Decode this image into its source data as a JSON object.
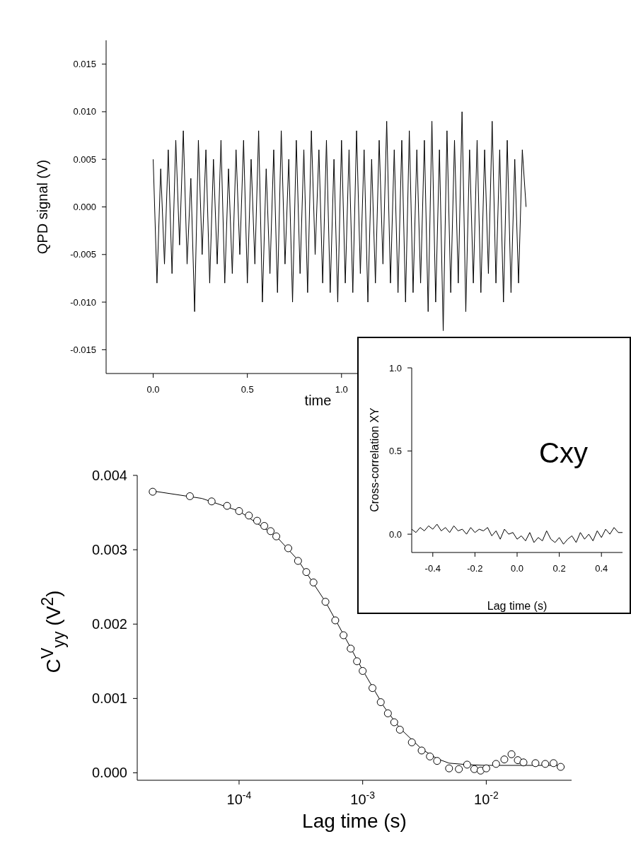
{
  "chart_data": [
    {
      "type": "line",
      "xlabel": "time",
      "ylabel": "QPD signal (V)",
      "color": "#000000",
      "xlim": [
        -0.25,
        2.0
      ],
      "xticks": [
        {
          "value": 0,
          "label": "0.0"
        },
        {
          "value": 0.5,
          "label": "0.5"
        },
        {
          "value": 1,
          "label": "1.0"
        }
      ],
      "ylim": [
        -0.0175,
        0.0175
      ],
      "yticks": [
        {
          "value": -0.015,
          "label": "-0.015"
        },
        {
          "value": -0.01,
          "label": "-0.010"
        },
        {
          "value": -0.005,
          "label": "-0.005"
        },
        {
          "value": 0,
          "label": "0.000"
        },
        {
          "value": 0.005,
          "label": "0.005"
        },
        {
          "value": 0.01,
          "label": "0.010"
        },
        {
          "value": 0.015,
          "label": "0.015"
        }
      ],
      "x": [
        0,
        0.02,
        0.04,
        0.06,
        0.08,
        0.1,
        0.12,
        0.14,
        0.16,
        0.18,
        0.2,
        0.22,
        0.24,
        0.26,
        0.28,
        0.3,
        0.32,
        0.34,
        0.36,
        0.38,
        0.4,
        0.42,
        0.44,
        0.46,
        0.48,
        0.5,
        0.52,
        0.54,
        0.56,
        0.58,
        0.6,
        0.62,
        0.64,
        0.66,
        0.68,
        0.7,
        0.72,
        0.74,
        0.76,
        0.78,
        0.8,
        0.82,
        0.84,
        0.86,
        0.88,
        0.9,
        0.92,
        0.94,
        0.96,
        0.98,
        1.0,
        1.02,
        1.04,
        1.06,
        1.08,
        1.1,
        1.12,
        1.14,
        1.16,
        1.18,
        1.2,
        1.22,
        1.24,
        1.26,
        1.28,
        1.3,
        1.32,
        1.34,
        1.36,
        1.38,
        1.4,
        1.42,
        1.44,
        1.46,
        1.48,
        1.5,
        1.52,
        1.54,
        1.56,
        1.58,
        1.6,
        1.62,
        1.64,
        1.66,
        1.68,
        1.7,
        1.72,
        1.74,
        1.76,
        1.78,
        1.8,
        1.82,
        1.84,
        1.86,
        1.88,
        1.9,
        1.92,
        1.94,
        1.96,
        1.98
      ],
      "values": [
        0.005,
        -0.008,
        0.004,
        -0.006,
        0.006,
        -0.007,
        0.007,
        -0.004,
        0.008,
        -0.006,
        0.003,
        -0.011,
        0.007,
        -0.005,
        0.006,
        -0.008,
        0.005,
        -0.006,
        0.007,
        -0.008,
        0.004,
        -0.007,
        0.006,
        -0.005,
        0.007,
        -0.008,
        0.005,
        -0.006,
        0.008,
        -0.01,
        0.004,
        -0.007,
        0.006,
        -0.009,
        0.008,
        -0.006,
        0.005,
        -0.01,
        0.007,
        -0.007,
        0.006,
        -0.009,
        0.008,
        -0.005,
        0.006,
        -0.008,
        0.007,
        -0.009,
        0.005,
        -0.01,
        0.007,
        -0.008,
        0.006,
        -0.009,
        0.008,
        -0.007,
        0.006,
        -0.01,
        0.005,
        -0.008,
        0.007,
        -0.006,
        0.009,
        -0.008,
        0.006,
        -0.009,
        0.007,
        -0.01,
        0.008,
        -0.009,
        0.006,
        -0.008,
        0.007,
        -0.011,
        0.009,
        -0.01,
        0.006,
        -0.013,
        0.008,
        -0.009,
        0.007,
        -0.008,
        0.01,
        -0.011,
        0.006,
        -0.008,
        0.007,
        -0.009,
        0.006,
        -0.007,
        0.009,
        -0.008,
        0.006,
        -0.01,
        0.007,
        -0.009,
        0.005,
        -0.008,
        0.006,
        0.0
      ]
    },
    {
      "type": "scatter",
      "xlabel": "Lag time (s)",
      "ylabel": "C$^{V}$$_{yy}$ (V$^{2}$)",
      "log": "x",
      "xlim": [
        1.5e-05,
        0.049
      ],
      "xticks": [
        {
          "value": 0.0001,
          "label": "10$^{-4}$"
        },
        {
          "value": 0.001,
          "label": "10$^{-3}$"
        },
        {
          "value": 0.01,
          "label": "10$^{-2}$"
        }
      ],
      "ylim": [
        -0.0001,
        0.004
      ],
      "yticks": [
        {
          "value": 0,
          "label": "0.000"
        },
        {
          "value": 0.001,
          "label": "0.001"
        },
        {
          "value": 0.002,
          "label": "0.002"
        },
        {
          "value": 0.003,
          "label": "0.003"
        },
        {
          "value": 0.004,
          "label": "0.004"
        }
      ],
      "series": [
        {
          "marker": "circle",
          "color": "#000000",
          "x": [
            2e-05,
            4e-05,
            6e-05,
            8e-05,
            0.0001,
            0.00012,
            0.00014,
            0.00016,
            0.00018,
            0.0002,
            0.00025,
            0.0003,
            0.00035,
            0.0004,
            0.0005,
            0.0006,
            0.0007,
            0.0008,
            0.0009,
            0.001,
            0.0012,
            0.0014,
            0.0016,
            0.0018,
            0.002,
            0.0025,
            0.003,
            0.0035,
            0.004,
            0.005,
            0.006,
            0.007,
            0.008,
            0.009,
            0.01,
            0.012,
            0.014,
            0.016,
            0.018,
            0.02,
            0.025,
            0.03,
            0.035,
            0.04
          ],
          "values": [
            0.00378,
            0.00372,
            0.00365,
            0.00359,
            0.00352,
            0.00346,
            0.00339,
            0.00332,
            0.00325,
            0.00318,
            0.00302,
            0.00285,
            0.0027,
            0.00256,
            0.0023,
            0.00205,
            0.00185,
            0.00167,
            0.0015,
            0.00137,
            0.00114,
            0.00095,
            0.0008,
            0.00068,
            0.00058,
            0.00041,
            0.0003,
            0.00022,
            0.00016,
            6e-05,
            5e-05,
            0.00011,
            5e-05,
            3e-05,
            6e-05,
            0.00012,
            0.00018,
            0.00025,
            0.00017,
            0.00014,
            0.00013,
            0.00012,
            0.00013,
            8e-05
          ]
        },
        {
          "type": "line",
          "color": "#000000",
          "x": [
            2e-05,
            5e-05,
            0.0001,
            0.0002,
            0.0003,
            0.0005,
            0.0007,
            0.001,
            0.0015,
            0.002,
            0.003,
            0.004,
            0.005,
            0.007,
            0.01,
            0.02,
            0.04
          ],
          "values": [
            0.00379,
            0.00369,
            0.00352,
            0.00318,
            0.00286,
            0.0023,
            0.00186,
            0.00138,
            0.00088,
            0.0006,
            0.00032,
            0.00019,
            0.00013,
            0.00011,
            0.0001,
            0.0001,
            0.0001
          ]
        }
      ]
    },
    {
      "type": "line",
      "xlabel": "Lag time (s)",
      "ylabel": "Cross-correlation XY",
      "annotations": [
        "Cxy"
      ],
      "color": "#000000",
      "xlim": [
        -0.5,
        0.5
      ],
      "xticks": [
        {
          "value": -0.4,
          "label": "-0.4"
        },
        {
          "value": -0.2,
          "label": "-0.2"
        },
        {
          "value": 0,
          "label": "0.0"
        },
        {
          "value": 0.2,
          "label": "0.2"
        },
        {
          "value": 0.4,
          "label": "0.4"
        }
      ],
      "ylim": [
        -0.11,
        1.0
      ],
      "yticks": [
        {
          "value": 0,
          "label": "0.0"
        },
        {
          "value": 0.5,
          "label": "0.5"
        },
        {
          "value": 1,
          "label": "1.0"
        }
      ],
      "x": [
        -0.5,
        -0.48,
        -0.46,
        -0.44,
        -0.42,
        -0.4,
        -0.38,
        -0.36,
        -0.34,
        -0.32,
        -0.3,
        -0.28,
        -0.26,
        -0.24,
        -0.22,
        -0.2,
        -0.18,
        -0.16,
        -0.14,
        -0.12,
        -0.1,
        -0.08,
        -0.06,
        -0.04,
        -0.02,
        0,
        0.02,
        0.04,
        0.06,
        0.08,
        0.1,
        0.12,
        0.14,
        0.16,
        0.18,
        0.2,
        0.22,
        0.24,
        0.26,
        0.28,
        0.3,
        0.32,
        0.34,
        0.36,
        0.38,
        0.4,
        0.42,
        0.44,
        0.46,
        0.48,
        0.5
      ],
      "values": [
        0.03,
        0.01,
        0.04,
        0.02,
        0.05,
        0.03,
        0.06,
        0.02,
        0.04,
        0.01,
        0.05,
        0.02,
        0.03,
        0.0,
        0.04,
        0.01,
        0.03,
        0.02,
        0.04,
        -0.01,
        0.02,
        -0.03,
        0.03,
        0.0,
        0.01,
        -0.03,
        -0.01,
        -0.04,
        0.01,
        -0.05,
        -0.02,
        -0.04,
        0.02,
        -0.03,
        -0.05,
        -0.02,
        -0.06,
        -0.03,
        -0.01,
        -0.05,
        0.01,
        -0.03,
        0.0,
        -0.04,
        0.02,
        -0.02,
        0.03,
        0.0,
        0.04,
        0.01,
        0.01
      ]
    }
  ]
}
